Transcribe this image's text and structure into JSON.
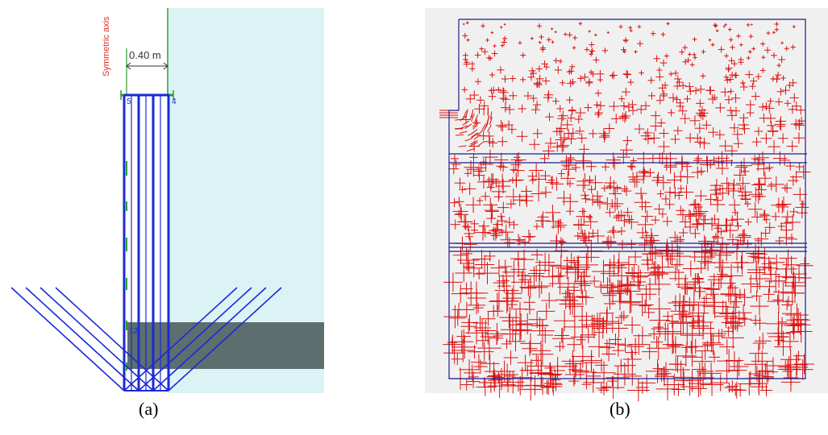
{
  "panel_a": {
    "axis_label": "Symmetric axis",
    "dimension_label": "0.40 m",
    "node_labels": [
      "5",
      "4",
      "12"
    ],
    "colors": {
      "model_bg": "#dcf3f6",
      "pile": "#1a2ad6",
      "axis": "#2e9e2e",
      "soil_layer": "#5d6e6e",
      "label_red": "#d9302c"
    }
  },
  "panel_b": {
    "colors": {
      "background": "#f0f0f0",
      "boundary": "#1b1f8a",
      "cracks": "#dd1111"
    }
  },
  "captions": {
    "a": "(a)",
    "b": "(b)"
  }
}
